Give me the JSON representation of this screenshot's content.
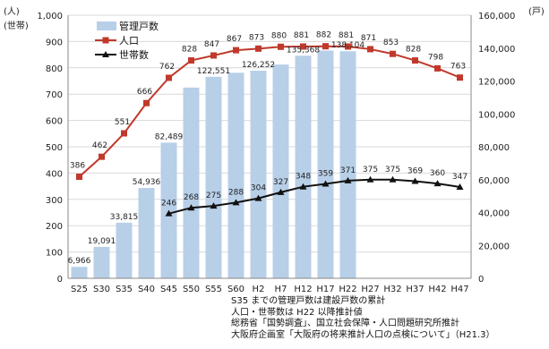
{
  "chart_data": {
    "type": "bar",
    "title": "",
    "categories": [
      "S25",
      "S30",
      "S35",
      "S40",
      "S45",
      "S50",
      "S55",
      "S60",
      "H2",
      "H7",
      "H12",
      "H17",
      "H22",
      "H27",
      "H32",
      "H37",
      "H42",
      "H47"
    ],
    "left_axis": {
      "label_line1": "(人)",
      "label_line2": "(世帯)",
      "min": 0,
      "max": 1000,
      "step": 100,
      "ticks": [
        "0",
        "100",
        "200",
        "300",
        "400",
        "500",
        "600",
        "700",
        "800",
        "900",
        "1,000"
      ]
    },
    "right_axis": {
      "label": "(戸)",
      "min": 0,
      "max": 160000,
      "step": 20000,
      "ticks": [
        "0",
        "20,000",
        "40,000",
        "60,000",
        "80,000",
        "100,000",
        "120,000",
        "140,000",
        "160,000"
      ]
    },
    "series": [
      {
        "name": "管理戸数",
        "kind": "bar",
        "axis": "right",
        "color": "#b8cfe8",
        "values": [
          6966,
          19091,
          33815,
          54936,
          82489,
          116000,
          122551,
          125000,
          126252,
          130000,
          135368,
          138500,
          138104,
          null,
          null,
          null,
          null,
          null
        ],
        "labels": [
          "6,966",
          "19,091",
          "33,815",
          "54,936",
          "82,489",
          "",
          "122,551",
          "",
          "126,252",
          "",
          "135,368",
          "",
          "138,104",
          "",
          "",
          "",
          "",
          ""
        ]
      },
      {
        "name": "人口",
        "kind": "line",
        "axis": "left",
        "color": "#c0392b",
        "marker": "square",
        "values": [
          386,
          462,
          551,
          666,
          762,
          828,
          847,
          867,
          873,
          880,
          881,
          882,
          881,
          871,
          853,
          828,
          798,
          763
        ],
        "labels": [
          "386",
          "462",
          "551",
          "666",
          "762",
          "828",
          "847",
          "867",
          "873",
          "880",
          "881",
          "882",
          "881",
          "871",
          "853",
          "828",
          "798",
          "763"
        ]
      },
      {
        "name": "世帯数",
        "kind": "line",
        "axis": "left",
        "color": "#111111",
        "marker": "triangle",
        "values": [
          null,
          null,
          null,
          null,
          246,
          268,
          275,
          288,
          304,
          327,
          348,
          359,
          371,
          375,
          375,
          369,
          360,
          347
        ],
        "labels": [
          "",
          "",
          "",
          "",
          "246",
          "268",
          "275",
          "288",
          "304",
          "327",
          "348",
          "359",
          "371",
          "375",
          "375",
          "369",
          "360",
          "347"
        ]
      }
    ],
    "grid": "horizontal",
    "legend": "top-left"
  },
  "notes": [
    "S35 までの管理戸数は建設戸数の累計",
    "人口・世帯数は H22 以降推計値",
    "総務省「国勢調査」、国立社会保障・人口問題研究所推計",
    "大阪府企画室「大阪府の将来推計人口の点検について」（H21.3）"
  ]
}
